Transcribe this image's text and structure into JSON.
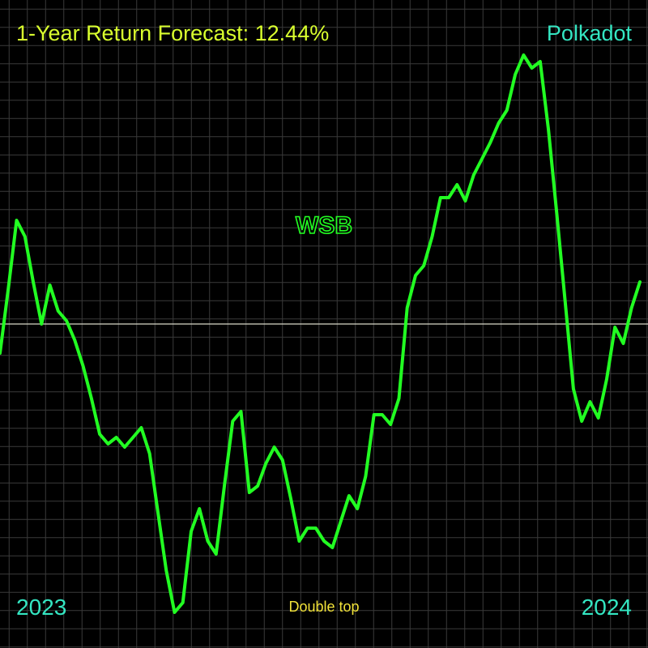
{
  "header": {
    "title": "1-Year Return Forecast: 12.44%",
    "asset": "Polkadot"
  },
  "footer": {
    "start_label": "2023",
    "end_label": "2024",
    "pattern_label": "Double top"
  },
  "colors": {
    "background": "#000000",
    "grid": "#3a3a3a",
    "line": "#22ff22",
    "baseline": "#d8d8c8",
    "title": "#d9ff2e",
    "asset": "#34e6c2",
    "pattern": "#f2e33a",
    "watermark": "#22ff22"
  },
  "chart_data": {
    "type": "line",
    "title": "1-Year Return Forecast: 12.44%",
    "watermark": "WSB",
    "x_start_label": "2023",
    "x_end_label": "2024",
    "annotation": "Double top",
    "grid": true,
    "baseline_value": 0,
    "ylim": [
      -100,
      100
    ],
    "series": [
      {
        "values": [
          -9,
          11,
          32,
          27,
          13,
          0,
          12,
          4,
          1,
          -5,
          -13,
          -23,
          -34,
          -37,
          -35,
          -38,
          -35,
          -32,
          -40,
          -58,
          -76,
          -89,
          -86,
          -64,
          -57,
          -67,
          -71,
          -50,
          -30,
          -27,
          -52,
          -50,
          -43,
          -38,
          -42,
          -54,
          -67,
          -63,
          -63,
          -67,
          -69,
          -61,
          -53,
          -57,
          -47,
          -28,
          -28,
          -31,
          -23,
          5,
          15,
          18,
          27,
          39,
          39,
          43,
          38,
          46,
          51,
          56,
          62,
          66,
          77,
          83,
          79,
          81,
          60,
          34,
          7,
          -20,
          -30,
          -24,
          -29,
          -17,
          -1,
          -6,
          5,
          13
        ]
      }
    ]
  }
}
